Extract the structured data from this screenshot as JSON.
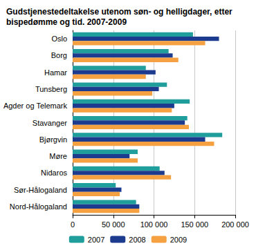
{
  "chart_data": {
    "type": "bar",
    "orientation": "horizontal",
    "title": "Gudstjenestedeltakelse utenom søn- og helligdager, etter\nbispedømme og tid. 2007-2009",
    "categories": [
      "Oslo",
      "Borg",
      "Hamar",
      "Tunsberg",
      "Agder og Telemark",
      "Stavanger",
      "Bjørgvin",
      "Møre",
      "Nidaros",
      "Sør-Hålogaland",
      "Nord-Hålogaland"
    ],
    "series": [
      {
        "name": "2007",
        "color": "#1f9e9b",
        "values": [
          148000,
          118000,
          90000,
          116000,
          144000,
          141000,
          184000,
          80000,
          107000,
          53000,
          78000
        ]
      },
      {
        "name": "2008",
        "color": "#1c3b8e",
        "values": [
          180000,
          123000,
          102000,
          106000,
          125000,
          138000,
          163000,
          70000,
          113000,
          60000,
          82000
        ]
      },
      {
        "name": "2009",
        "color": "#f5a142",
        "values": [
          163000,
          130000,
          90000,
          98000,
          122000,
          143000,
          174000,
          80000,
          121000,
          58000,
          82000
        ]
      }
    ],
    "xlim": [
      0,
      200000
    ],
    "xticks": [
      0,
      {
        "value": 50000,
        "label": "50 000"
      },
      {
        "value": 100000,
        "label": "100 000"
      },
      {
        "value": 150000,
        "label": "150 000"
      },
      {
        "value": 200000,
        "label": "200 000"
      }
    ],
    "grid": true,
    "legend": "bottom"
  }
}
